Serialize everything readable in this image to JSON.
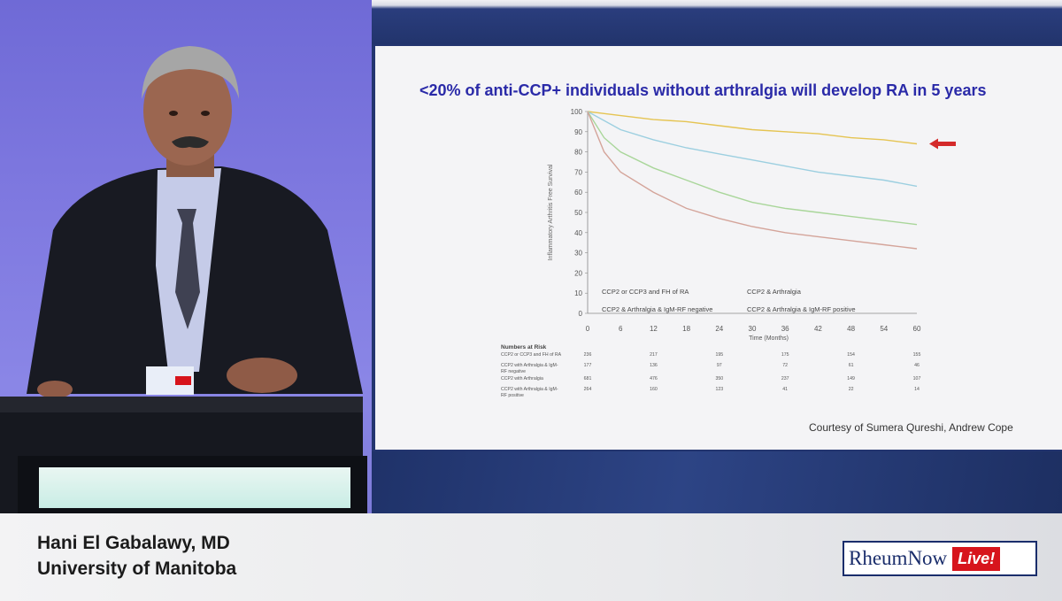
{
  "slide": {
    "title": "<20% of anti-CCP+ individuals without arthralgia will develop RA in 5 years",
    "courtesy": "Courtesy of Sumera Qureshi, Andrew Cope"
  },
  "chart_data": {
    "type": "line",
    "ylabel": "Inflammatory Arthritis Free Survival",
    "xlabel": "Time (Months)",
    "xlim": [
      0,
      60
    ],
    "ylim": [
      0,
      100
    ],
    "x_ticks": [
      "0",
      "6",
      "12",
      "18",
      "24",
      "30",
      "36",
      "42",
      "48",
      "54",
      "60"
    ],
    "y_ticks": [
      "0",
      "10",
      "20",
      "30",
      "40",
      "50",
      "60",
      "70",
      "80",
      "90",
      "100"
    ],
    "legend_placement": "inside-bottom",
    "series": [
      {
        "name": "CCP2 or CCP3 and FH of RA",
        "color": "#e5c452",
        "x": [
          0,
          6,
          12,
          18,
          24,
          30,
          36,
          42,
          48,
          54,
          60
        ],
        "y": [
          100,
          98,
          96,
          95,
          93,
          91,
          90,
          89,
          87,
          86,
          84
        ]
      },
      {
        "name": "CCP2 & Arthralgia",
        "color": "#9ccfe0",
        "x": [
          0,
          6,
          12,
          18,
          24,
          30,
          36,
          42,
          48,
          54,
          60
        ],
        "y": [
          100,
          91,
          86,
          82,
          79,
          76,
          73,
          70,
          68,
          66,
          63
        ]
      },
      {
        "name": "CCP2 & Arthralgia & IgM-RF negative",
        "color": "#a9d69a",
        "x": [
          0,
          3,
          6,
          12,
          18,
          24,
          30,
          36,
          42,
          48,
          54,
          60
        ],
        "y": [
          100,
          87,
          80,
          72,
          66,
          60,
          55,
          52,
          50,
          48,
          46,
          44
        ]
      },
      {
        "name": "CCP2 & Arthralgia & IgM-RF positive",
        "color": "#d4a49a",
        "x": [
          0,
          3,
          6,
          12,
          18,
          24,
          30,
          36,
          42,
          48,
          54,
          60
        ],
        "y": [
          100,
          80,
          70,
          60,
          52,
          47,
          43,
          40,
          38,
          36,
          34,
          32
        ]
      }
    ],
    "annotation": "arrow pointing at top curve at 60 months"
  },
  "risk_table": {
    "header": "Numbers at Risk",
    "rows": [
      {
        "label_lines": [
          "CCP2 or CCP3 and FH of RA"
        ],
        "values": [
          "236",
          "217",
          "195",
          "175",
          "154",
          "155"
        ]
      },
      {
        "label_lines": [
          "CCP2 with Arthralgia & IgM-",
          "RF negative"
        ],
        "values": [
          "177",
          "136",
          "97",
          "72",
          "61",
          "46"
        ]
      },
      {
        "label_lines": [
          "CCP2 with Arthralgia"
        ],
        "values": [
          "681",
          "476",
          "350",
          "237",
          "149",
          "107"
        ]
      },
      {
        "label_lines": [
          "CCP2 with Arthralgia & IgM-",
          "RF positive"
        ],
        "values": [
          "264",
          "160",
          "123",
          "41",
          "22",
          "14"
        ]
      }
    ]
  },
  "presenter": {
    "name": "Hani El Gabalawy, MD",
    "affiliation": "University of Manitoba"
  },
  "brand": {
    "main": "RheumNow",
    "live": "Live!",
    "lanyard_text": "RheumNow Live"
  },
  "colors": {
    "slide_title": "#2a2aa8",
    "brand_navy": "#1a2d6b",
    "brand_red": "#d7141c",
    "arrow_red": "#d42a2a"
  }
}
